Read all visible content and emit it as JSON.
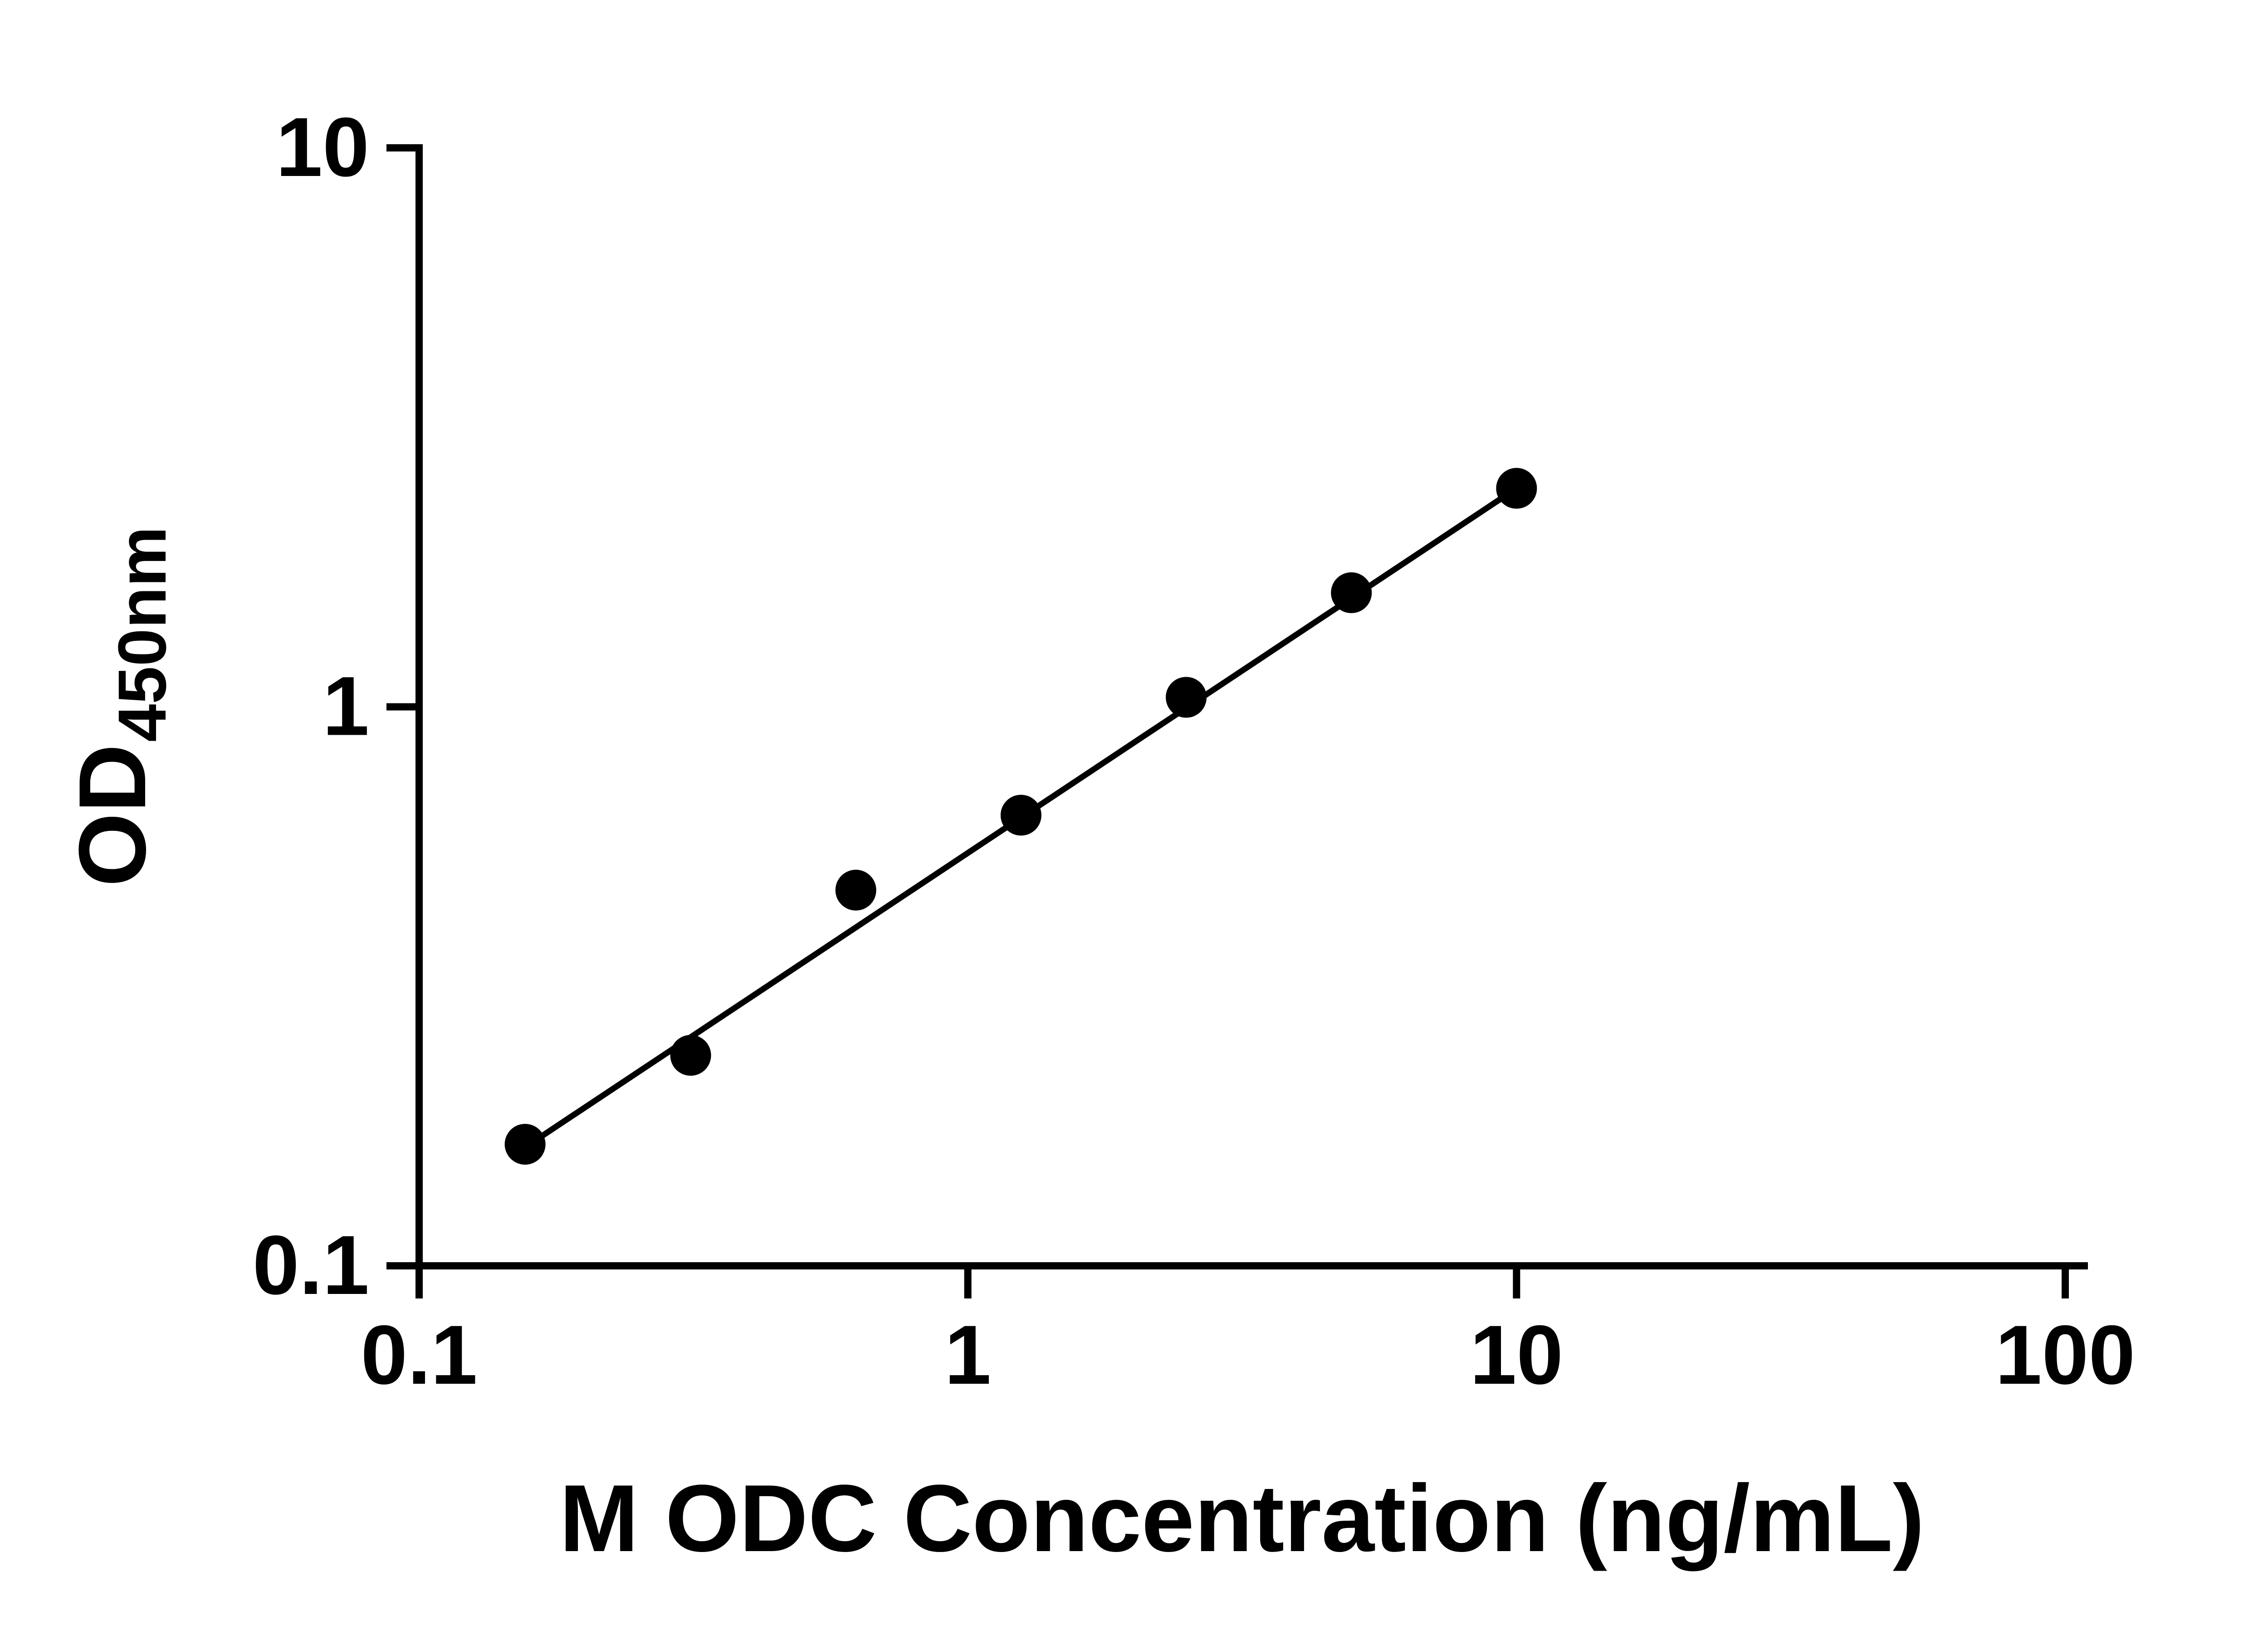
{
  "chart_data": {
    "type": "scatter",
    "title": "",
    "xlabel": "M ODC Concentration (ng/mL)",
    "ylabel_main": "OD",
    "ylabel_sub": "450nm",
    "x_scale": "log",
    "y_scale": "log",
    "xlim": [
      0.1,
      100
    ],
    "ylim": [
      0.1,
      10
    ],
    "x_ticks": [
      {
        "value": 0.1,
        "label": "0.1"
      },
      {
        "value": 1,
        "label": "1"
      },
      {
        "value": 10,
        "label": "10"
      },
      {
        "value": 100,
        "label": "100"
      }
    ],
    "y_ticks": [
      {
        "value": 0.1,
        "label": "0.1"
      },
      {
        "value": 1,
        "label": "1"
      },
      {
        "value": 10,
        "label": "10"
      }
    ],
    "points": [
      {
        "x": 0.156,
        "y": 0.165
      },
      {
        "x": 0.3125,
        "y": 0.238
      },
      {
        "x": 0.625,
        "y": 0.47
      },
      {
        "x": 1.25,
        "y": 0.64
      },
      {
        "x": 2.5,
        "y": 1.04
      },
      {
        "x": 5,
        "y": 1.6
      },
      {
        "x": 10,
        "y": 2.46
      }
    ],
    "fit_line": {
      "x1": 0.156,
      "y1": 0.163,
      "x2": 10,
      "y2": 2.46
    },
    "legend": null,
    "grid": false,
    "colors": {
      "background": "#ffffff",
      "axis": "#000000",
      "marker": "#000000",
      "line": "#000000",
      "text": "#000000"
    }
  }
}
